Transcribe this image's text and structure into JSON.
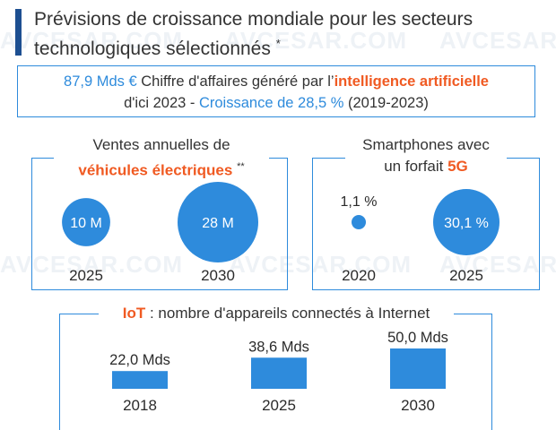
{
  "header": {
    "title": "Prévisions de croissance mondiale pour les secteurs technologiques sélectionnés",
    "title_mark": "*"
  },
  "ai": {
    "value": "87,9 Mds €",
    "text1": " Chiffre d'affaires généré par l’",
    "highlight": "intelligence artificielle",
    "text2": "d'ici 2023 - ",
    "growth": "Croissance de 28,5 %",
    "period": " (2019-2023)"
  },
  "watermark": "AVCESAR.COM",
  "colors": {
    "accent": "#2e8bdc",
    "highlight": "#f05a22",
    "title_bar": "#1d4f91",
    "text": "#2b2b2b"
  },
  "chart_data": [
    {
      "id": "ev",
      "type": "bubble",
      "title_line1": "Ventes annuelles de",
      "title_highlight": "véhicules électriques",
      "title_mark": "**",
      "categories": [
        "2025",
        "2030"
      ],
      "values": [
        10,
        28
      ],
      "unit": "M",
      "labels": [
        "10 M",
        "28 M"
      ]
    },
    {
      "id": "smartphones",
      "type": "bubble",
      "title_line1": "Smartphones avec",
      "title_line2": "un forfait ",
      "title_highlight": "5G",
      "categories": [
        "2020",
        "2025"
      ],
      "values": [
        1.1,
        30.1
      ],
      "unit": "%",
      "labels": [
        "1,1 %",
        "30,1 %"
      ]
    },
    {
      "id": "iot",
      "type": "bar",
      "title_highlight": "IoT",
      "title_rest": " : nombre d'appareils connectés à Internet",
      "categories": [
        "2018",
        "2025",
        "2030"
      ],
      "values": [
        22.0,
        38.6,
        50.0
      ],
      "unit": "Mds",
      "labels": [
        "22,0 Mds",
        "38,6 Mds",
        "50,0 Mds"
      ]
    }
  ]
}
